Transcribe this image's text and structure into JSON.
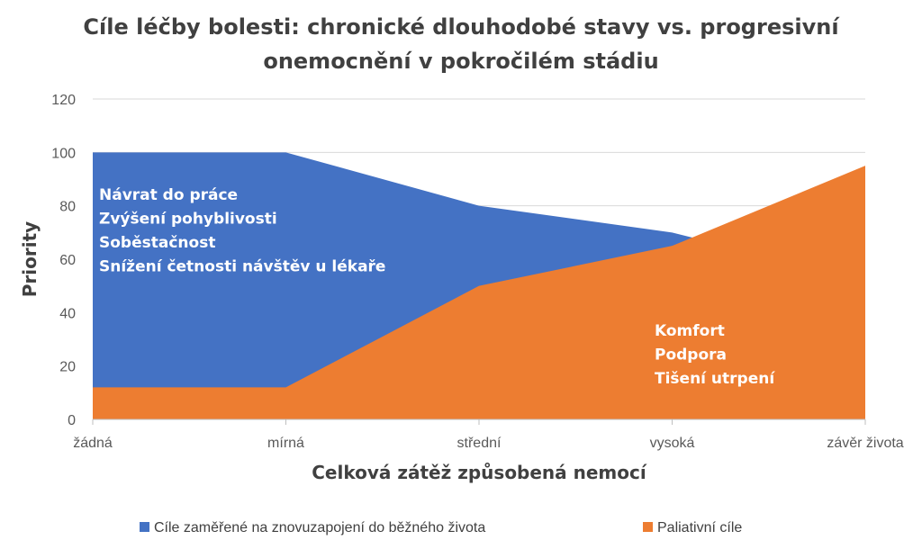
{
  "chart_data": {
    "type": "area",
    "title_lines": [
      "Cíle léčby bolesti: chronické dlouhodobé stavy vs. progresivní",
      "onemocnění v pokročilém stádiu"
    ],
    "xlabel": "Celková zátěž způsobená nemocí",
    "ylabel": "Priority",
    "categories": [
      "žádná",
      "mírná",
      "střední",
      "vysoká",
      "závěr života"
    ],
    "ylim": [
      0,
      120
    ],
    "yticks": [
      0,
      20,
      40,
      60,
      80,
      100,
      120
    ],
    "grid": true,
    "legend_position": "bottom",
    "series": [
      {
        "name": "Cíle zaměřené na znovuzapojení do běžného života",
        "color": "#4472C4",
        "values": [
          100,
          100,
          80,
          70,
          52
        ]
      },
      {
        "name": "Paliativní cíle",
        "color": "#ED7D31",
        "values": [
          12,
          12,
          50,
          65,
          95
        ]
      }
    ],
    "annotations": {
      "reengagement": [
        "Návrat do práce",
        "Zvýšení pohyblivosti",
        "Soběstačnost",
        "Snížení četnosti návštěv u lékaře"
      ],
      "palliative": [
        "Komfort",
        "Podpora",
        "Tišení utrpení"
      ]
    }
  }
}
